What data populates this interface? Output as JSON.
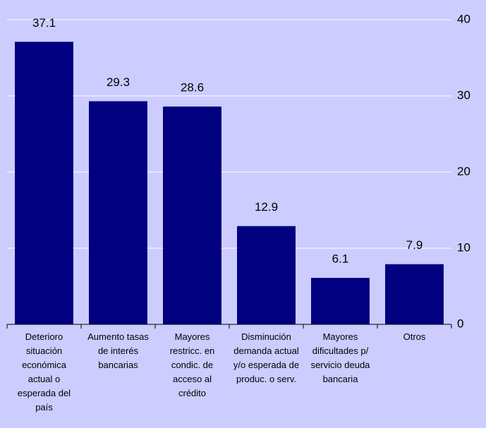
{
  "chart_data": {
    "type": "bar",
    "categories": [
      "Deterioro situación económica actual o esperada del país",
      "Aumento tasas de interés bancarias",
      "Mayores restricc. en condic. de acceso al crédito",
      "Disminución demanda actual y/o esperada de produc. o serv.",
      "Mayores dificultades p/ servicio deuda bancaria",
      "Otros"
    ],
    "values": [
      37.1,
      29.3,
      28.6,
      12.9,
      6.1,
      7.9
    ],
    "color": "#000080",
    "ylim": [
      0,
      40
    ],
    "yticks": [
      0,
      10,
      20,
      30,
      40
    ],
    "grid": true,
    "y_axis_side": "right"
  }
}
